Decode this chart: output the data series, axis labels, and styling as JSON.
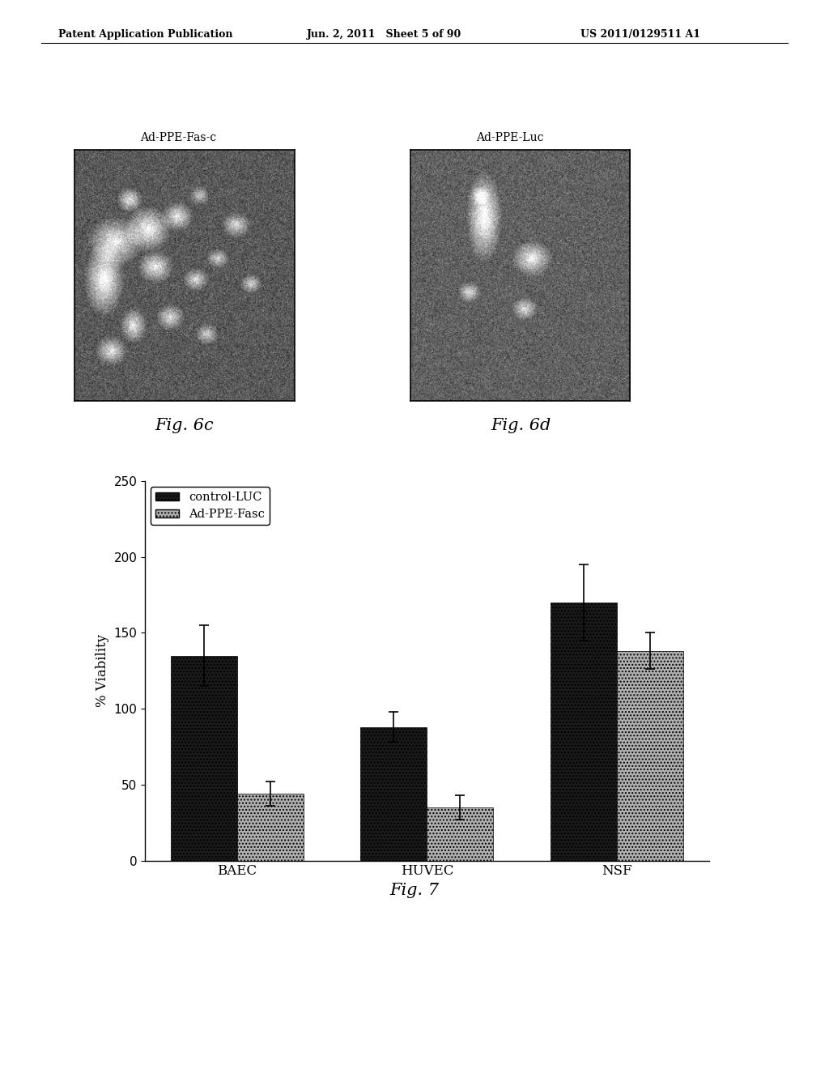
{
  "header_left": "Patent Application Publication",
  "header_mid": "Jun. 2, 2011   Sheet 5 of 90",
  "header_right": "US 2011/0129511 A1",
  "fig6c_label_top": "Ad-PPE-Fas-c",
  "fig6d_label_top": "Ad-PPE-Luc",
  "fig6c_caption": "Fig. 6c",
  "fig6d_caption": "Fig. 6d",
  "fig7_caption": "Fig. 7",
  "ylabel": "% Viability",
  "categories": [
    "BAEC",
    "HUVEC",
    "NSF"
  ],
  "control_luc_values": [
    135,
    88,
    170
  ],
  "ad_ppe_fasc_values": [
    44,
    35,
    138
  ],
  "control_luc_errors": [
    20,
    10,
    25
  ],
  "ad_ppe_fasc_errors": [
    8,
    8,
    12
  ],
  "control_luc_color": "#1a1a1a",
  "ad_ppe_fasc_color": "#b0b0b0",
  "ylim": [
    0,
    250
  ],
  "yticks": [
    0,
    50,
    100,
    150,
    200,
    250
  ],
  "legend_labels": [
    "control-LUC",
    "Ad-PPE-Fasc"
  ],
  "background_color": "#ffffff",
  "bar_width": 0.35,
  "img6c_noise_seed": 42,
  "img6d_noise_seed": 99
}
